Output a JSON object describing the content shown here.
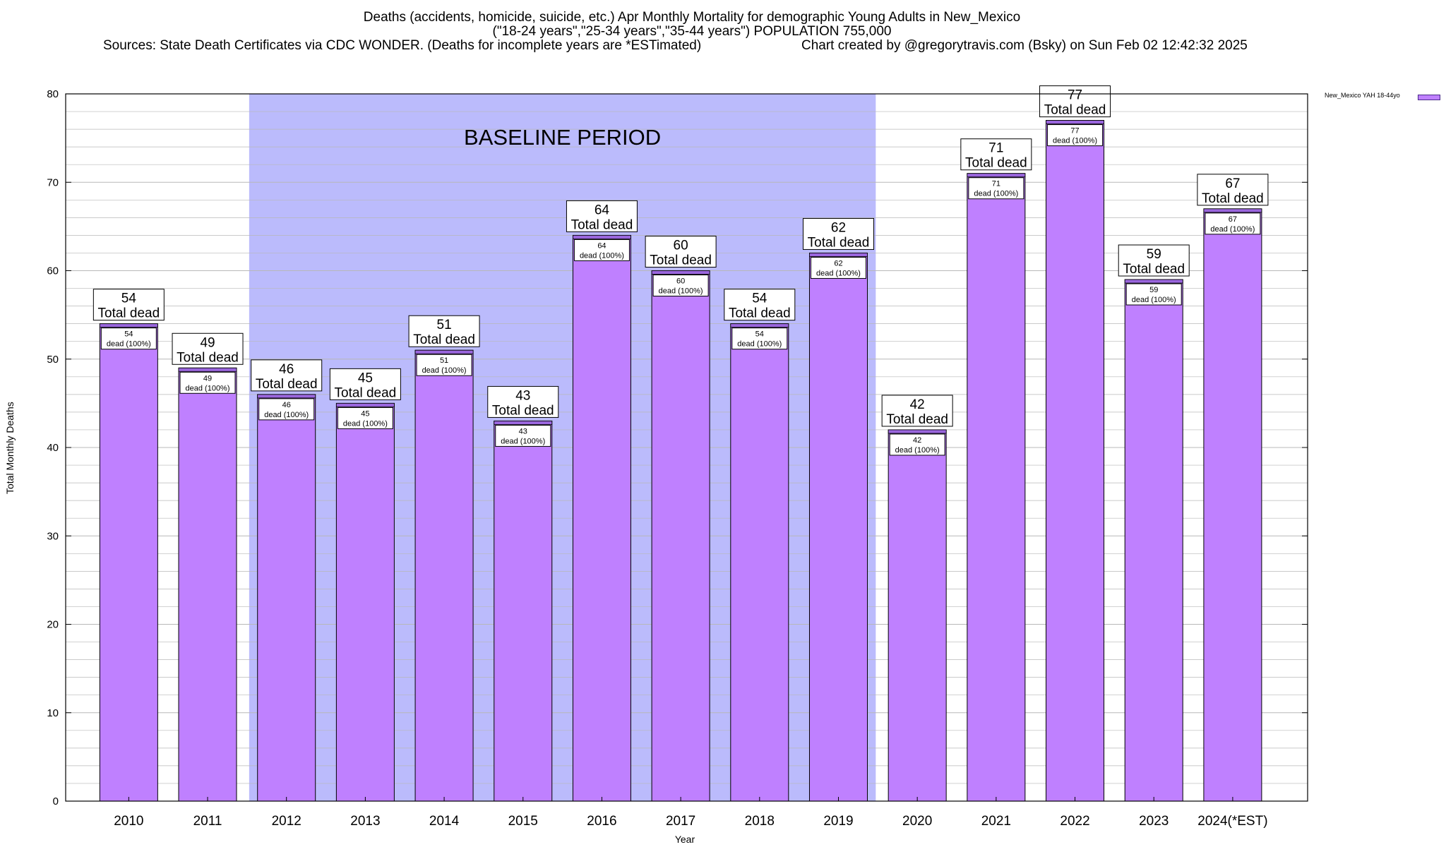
{
  "header": {
    "title_line1": "Deaths (accidents, homicide, suicide, etc.) Apr Monthly Mortality for demographic Young Adults in New_Mexico",
    "title_line2": "(\"18-24 years\",\"25-34 years\",\"35-44 years\") POPULATION 755,000",
    "sources": "Sources: State Death Certificates via CDC WONDER. (Deaths for incomplete years are *ESTimated)",
    "credit": "Chart created by @gregorytravis.com (Bsky) on Sun Feb 02 12:42:32 2025"
  },
  "colors": {
    "bar_fill": "#bf80ff",
    "bar_top": "#9a66dd",
    "baseline_band": "#bbbbfc",
    "grid": "#b8b8b8"
  },
  "chart_data": {
    "type": "bar",
    "xlabel": "Year",
    "ylabel": "Total Monthly Deaths",
    "ylim": [
      0,
      80
    ],
    "yticks": [
      0,
      10,
      20,
      30,
      40,
      50,
      60,
      70,
      80
    ],
    "grid": true,
    "legend_position": "top-right",
    "categories": [
      "2010",
      "2011",
      "2012",
      "2013",
      "2014",
      "2015",
      "2016",
      "2017",
      "2018",
      "2019",
      "2020",
      "2021",
      "2022",
      "2023",
      "2024(*EST)"
    ],
    "series": [
      {
        "name": "New_Mexico YAH 18-44yo",
        "values": [
          54,
          49,
          46,
          45,
          51,
          43,
          64,
          60,
          54,
          62,
          42,
          71,
          77,
          59,
          67
        ]
      }
    ],
    "annotations": {
      "band_label": "BASELINE PERIOD",
      "band_from": "2012",
      "band_to": "2019",
      "total_label": "Total dead",
      "inner_label_suffix": "dead (100%)"
    }
  }
}
